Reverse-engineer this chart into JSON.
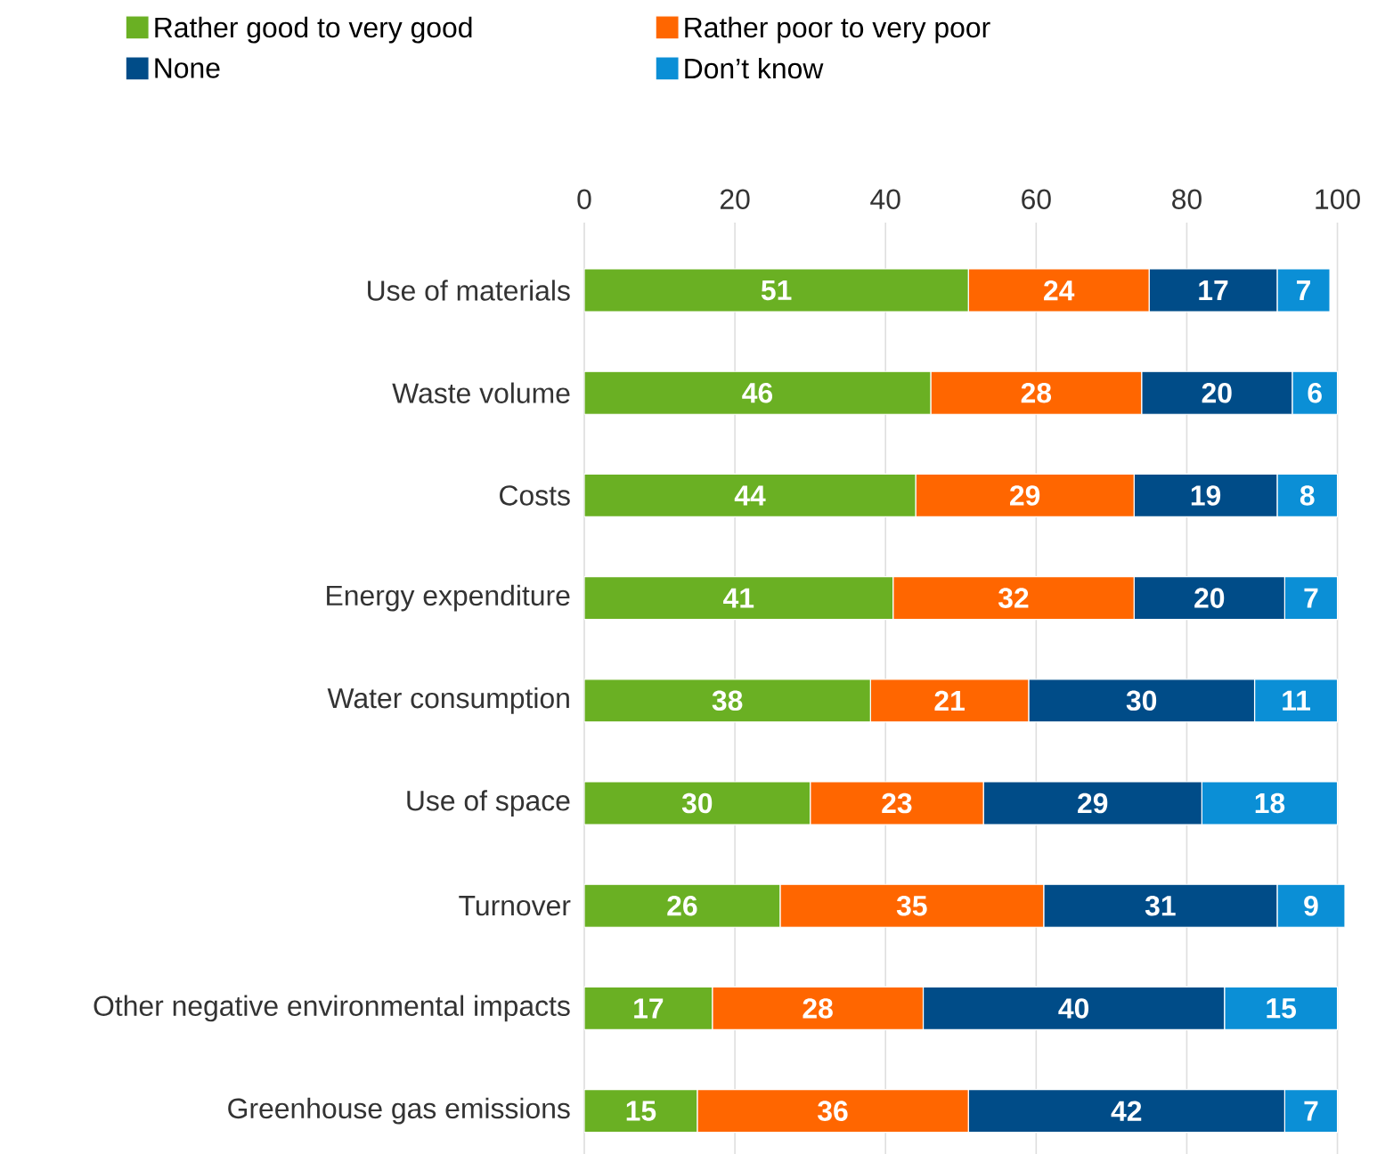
{
  "chart_data": {
    "type": "bar",
    "orientation": "horizontal",
    "stacked": true,
    "data_labels": true,
    "grid": "x",
    "legend": "top",
    "categories": [
      "Use of materials",
      "Waste volume",
      "Costs",
      "Energy expenditure",
      "Water consumption",
      "Use of space",
      "Turnover",
      "Other negative environmental impacts",
      "Greenhouse gas emissions"
    ],
    "series": [
      {
        "name": "Rather good to very good",
        "color": "#6ab023",
        "values": [
          51,
          46,
          44,
          41,
          38,
          30,
          26,
          17,
          15
        ]
      },
      {
        "name": "Rather poor to very poor",
        "color": "#ff6600",
        "values": [
          24,
          28,
          29,
          32,
          21,
          23,
          35,
          28,
          36
        ]
      },
      {
        "name": "None",
        "color": "#004c88",
        "values": [
          17,
          20,
          19,
          20,
          30,
          29,
          31,
          40,
          42
        ]
      },
      {
        "name": "Don’t know",
        "color": "#0b8fd6",
        "values": [
          7,
          6,
          8,
          7,
          11,
          18,
          9,
          15,
          7
        ]
      }
    ],
    "xlim": [
      0,
      101
    ],
    "xticks": [
      0,
      20,
      40,
      60,
      80,
      100
    ]
  }
}
